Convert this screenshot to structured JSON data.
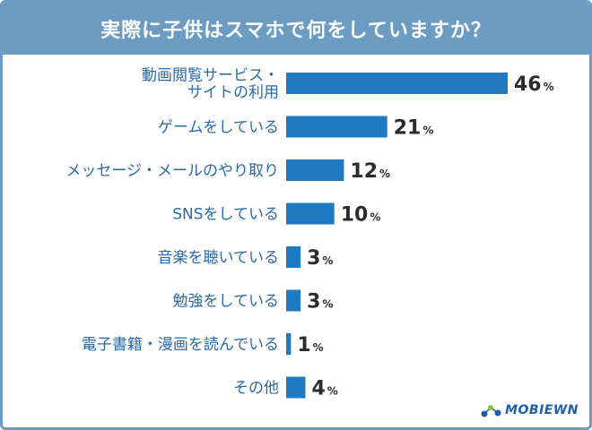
{
  "title": "実際に子供はスマホで何をしていますか？",
  "brand": {
    "logo_text": "MOBIEWN"
  },
  "colors": {
    "accent": "#6d9cc2",
    "bar": "#1f7ac2",
    "label": "#2a6aa6",
    "value": "#2b2b2b"
  },
  "chart_data": {
    "type": "bar",
    "orientation": "horizontal",
    "title": "実際に子供はスマホで何をしていますか？",
    "unit": "%",
    "xlim": [
      0,
      46
    ],
    "categories": [
      [
        "動画閲覧サービス・",
        "サイトの利用"
      ],
      [
        "ゲームをしている"
      ],
      [
        "メッセージ・メールのやり取り"
      ],
      [
        "SNSをしている"
      ],
      [
        "音楽を聴いている"
      ],
      [
        "勉強をしている"
      ],
      [
        "電子書籍・漫画を読んでいる"
      ],
      [
        "その他"
      ]
    ],
    "values": [
      46,
      21,
      12,
      10,
      3,
      3,
      1,
      4
    ]
  }
}
